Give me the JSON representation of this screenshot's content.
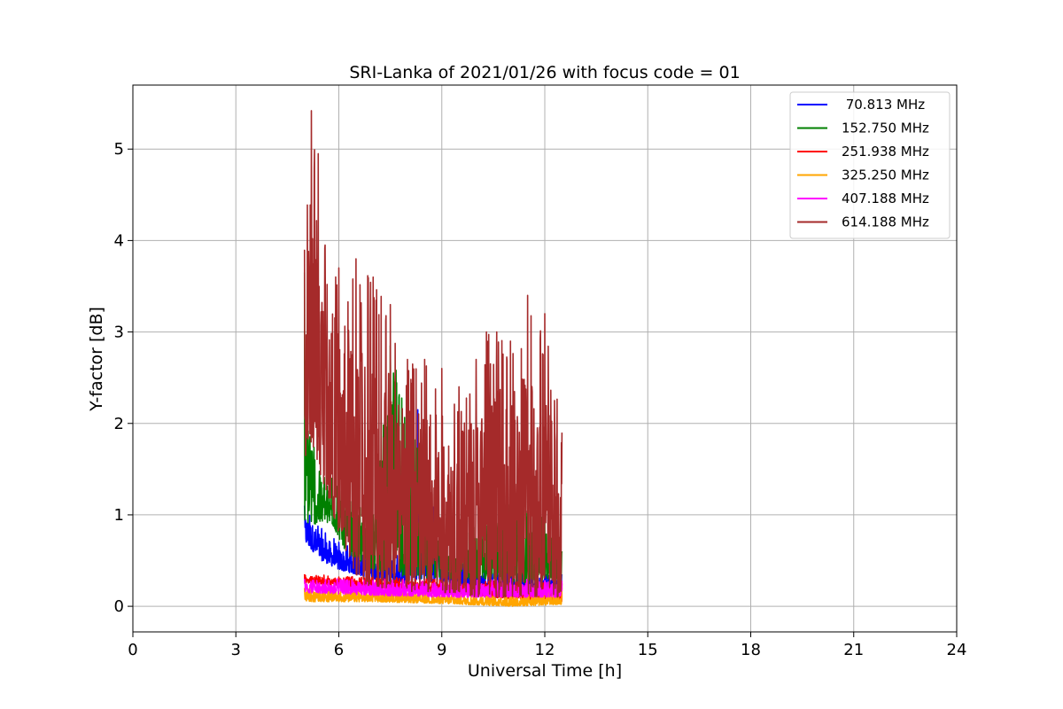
{
  "chart_data": {
    "type": "line",
    "title": "SRI-Lanka of 2021/01/26 with focus code = 01",
    "xlabel": "Universal Time [h]",
    "ylabel": "Y-factor [dB]",
    "xlim": [
      0,
      24
    ],
    "ylim": [
      -0.28,
      5.7
    ],
    "xticks": [
      0,
      3,
      6,
      9,
      12,
      15,
      18,
      21,
      24
    ],
    "yticks": [
      0,
      1,
      2,
      3,
      4,
      5
    ],
    "grid": true,
    "legend_position": "top-right",
    "x_range_of_data": [
      5.0,
      12.5
    ],
    "series": [
      {
        "name": " 70.813 MHz",
        "color": "#0000ff",
        "envelope": [
          [
            5.0,
            0.7,
            1.1
          ],
          [
            5.5,
            0.5,
            0.85
          ],
          [
            6.0,
            0.4,
            0.7
          ],
          [
            7.0,
            0.3,
            0.6
          ],
          [
            8.0,
            0.25,
            0.55
          ],
          [
            8.3,
            0.3,
            2.15
          ],
          [
            9.0,
            0.25,
            0.5
          ],
          [
            10.0,
            0.2,
            0.45
          ],
          [
            11.0,
            0.15,
            0.4
          ],
          [
            12.0,
            0.15,
            0.35
          ],
          [
            12.5,
            0.15,
            0.35
          ]
        ]
      },
      {
        "name": "152.750 MHz",
        "color": "#008000",
        "envelope": [
          [
            5.0,
            0.9,
            3.65
          ],
          [
            5.3,
            0.9,
            1.6
          ],
          [
            5.8,
            0.9,
            1.4
          ],
          [
            6.2,
            0.6,
            1.2
          ],
          [
            7.0,
            0.4,
            1.0
          ],
          [
            7.5,
            0.35,
            2.85
          ],
          [
            8.0,
            0.3,
            2.2
          ],
          [
            9.0,
            0.3,
            0.6
          ],
          [
            10.5,
            0.3,
            1.1
          ],
          [
            11.5,
            0.25,
            1.3
          ],
          [
            12.0,
            0.3,
            0.95
          ],
          [
            12.5,
            0.3,
            0.6
          ]
        ]
      },
      {
        "name": "251.938 MHz",
        "color": "#ff0000",
        "envelope": [
          [
            5.0,
            0.25,
            0.35
          ],
          [
            7.0,
            0.2,
            0.32
          ],
          [
            9.0,
            0.15,
            0.3
          ],
          [
            11.0,
            0.08,
            0.28
          ],
          [
            12.5,
            0.05,
            0.25
          ]
        ]
      },
      {
        "name": "325.250 MHz",
        "color": "#ffa500",
        "envelope": [
          [
            5.0,
            0.05,
            0.2
          ],
          [
            7.0,
            0.05,
            0.18
          ],
          [
            9.0,
            0.03,
            0.15
          ],
          [
            11.0,
            0.0,
            0.15
          ],
          [
            12.5,
            0.02,
            0.2
          ]
        ]
      },
      {
        "name": "407.188 MHz",
        "color": "#ff00ff",
        "envelope": [
          [
            5.0,
            0.15,
            0.3
          ],
          [
            7.0,
            0.12,
            0.3
          ],
          [
            9.0,
            0.1,
            0.28
          ],
          [
            11.0,
            0.1,
            0.3
          ],
          [
            12.5,
            0.1,
            0.28
          ]
        ]
      },
      {
        "name": "614.188 MHz",
        "color": "#a52a2a",
        "envelope": [
          [
            5.0,
            1.6,
            3.9
          ],
          [
            5.2,
            1.8,
            5.42
          ],
          [
            5.4,
            1.5,
            4.95
          ],
          [
            5.6,
            1.3,
            3.95
          ],
          [
            6.0,
            0.8,
            3.7
          ],
          [
            6.5,
            0.3,
            3.8
          ],
          [
            7.0,
            0.2,
            3.6
          ],
          [
            7.5,
            0.2,
            3.3
          ],
          [
            8.0,
            0.15,
            2.7
          ],
          [
            8.5,
            0.15,
            2.7
          ],
          [
            9.0,
            0.15,
            2.6
          ],
          [
            9.5,
            0.15,
            2.4
          ],
          [
            10.0,
            0.1,
            2.7
          ],
          [
            10.3,
            0.1,
            3.0
          ],
          [
            10.6,
            0.1,
            3.0
          ],
          [
            11.0,
            0.1,
            2.9
          ],
          [
            11.5,
            0.1,
            3.4
          ],
          [
            12.0,
            0.1,
            3.2
          ],
          [
            12.5,
            0.1,
            1.9
          ]
        ]
      }
    ]
  }
}
